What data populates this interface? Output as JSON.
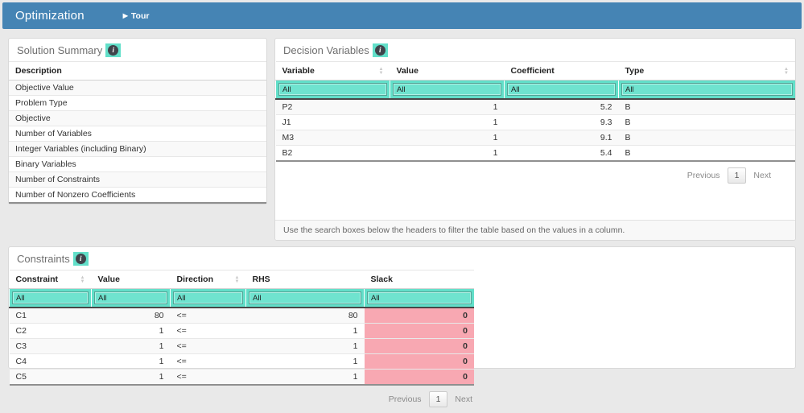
{
  "header": {
    "title": "Optimization",
    "tour_label": "Tour",
    "tour_icon": "play"
  },
  "colors": {
    "topbar_blue": "#4584b4",
    "highlight_teal": "#62dfc9",
    "slack_pink": "#f8a8b2"
  },
  "solution_summary": {
    "title": "Solution Summary",
    "columns": [
      "Description"
    ],
    "rows": [
      "Objective Value",
      "Problem Type",
      "Objective",
      "Number of Variables",
      "Integer Variables (including Binary)",
      "Binary Variables",
      "Number of Constraints",
      "Number of Nonzero Coefficients"
    ]
  },
  "decision_variables": {
    "title": "Decision Variables",
    "columns": [
      "Variable",
      "Value",
      "Coefficient",
      "Type"
    ],
    "filters": [
      "All",
      "All",
      "All",
      "All"
    ],
    "rows": [
      [
        "P2",
        "1",
        "5.2",
        "B"
      ],
      [
        "J1",
        "1",
        "9.3",
        "B"
      ],
      [
        "M3",
        "1",
        "9.1",
        "B"
      ],
      [
        "B2",
        "1",
        "5.4",
        "B"
      ]
    ],
    "pagination": {
      "previous": "Previous",
      "page": "1",
      "next": "Next"
    },
    "note": "Use the search boxes below the headers to filter the table based on the values in a column."
  },
  "constraints": {
    "title": "Constraints",
    "columns": [
      "Constraint",
      "Value",
      "Direction",
      "RHS",
      "Slack"
    ],
    "filters": [
      "All",
      "All",
      "All",
      "All",
      "All"
    ],
    "rows": [
      [
        "C1",
        "80",
        "<=",
        "80",
        "0"
      ],
      [
        "C2",
        "1",
        "<=",
        "1",
        "0"
      ],
      [
        "C3",
        "1",
        "<=",
        "1",
        "0"
      ],
      [
        "C4",
        "1",
        "<=",
        "1",
        "0"
      ],
      [
        "C5",
        "1",
        "<=",
        "1",
        "0"
      ]
    ],
    "pagination": {
      "previous": "Previous",
      "page": "1",
      "next": "Next"
    }
  }
}
